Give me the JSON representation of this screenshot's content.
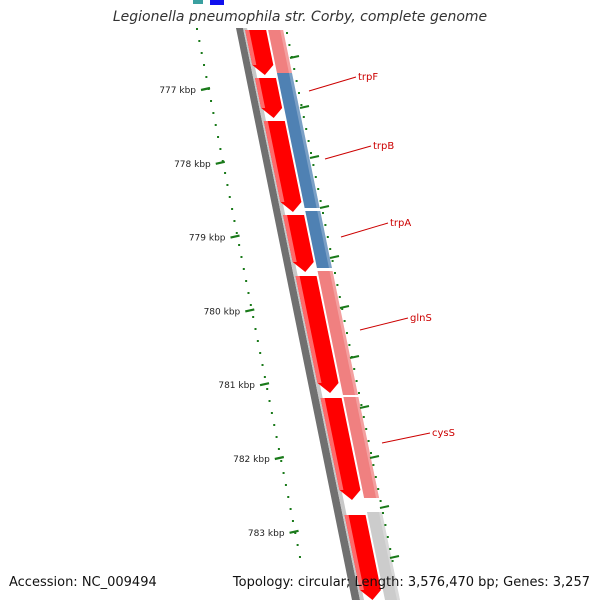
{
  "title": "Legionella pneumophila str. Corby, complete genome",
  "footer": {
    "accession": "Accession: NC_009494",
    "summary": "Topology: circular; Length: 3,576,470 bp; Genes: 3,257"
  },
  "colors": {
    "cds": "#ff0000",
    "cds_light": "#f08080",
    "trp_operon": "#4f81b3",
    "backbone": "#777777",
    "tick": "#1a7a1a",
    "label": "#cc0000"
  },
  "axis_ticks": [
    {
      "label": "777 kbp"
    },
    {
      "label": "778 kbp"
    },
    {
      "label": "779 kbp"
    },
    {
      "label": "780 kbp"
    },
    {
      "label": "781 kbp"
    },
    {
      "label": "782 kbp"
    },
    {
      "label": "783 kbp"
    }
  ],
  "gene_labels": [
    {
      "name": "trpF"
    },
    {
      "name": "trpB"
    },
    {
      "name": "trpA"
    },
    {
      "name": "glnS"
    },
    {
      "name": "cysS"
    }
  ]
}
